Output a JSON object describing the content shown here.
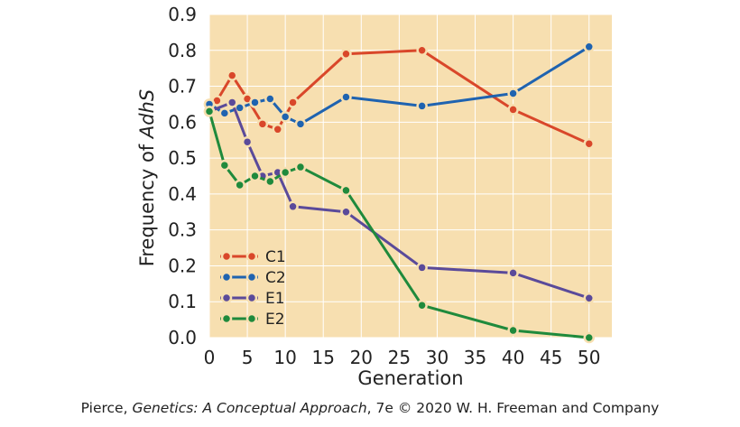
{
  "chart_data": {
    "type": "line",
    "xlabel": "Generation",
    "ylabel": {
      "prefix": "Frequency of ",
      "gene": "AdhS"
    },
    "xlim": [
      0,
      53
    ],
    "ylim": [
      0,
      0.9
    ],
    "xticks": [
      0,
      5,
      10,
      15,
      20,
      25,
      30,
      35,
      40,
      45,
      50
    ],
    "yticks": [
      0.0,
      0.1,
      0.2,
      0.3,
      0.4,
      0.5,
      0.6,
      0.7,
      0.8,
      0.9
    ],
    "ytick_labels": [
      "0.0",
      "0.1",
      "0.2",
      "0.3",
      "0.4",
      "0.5",
      "0.6",
      "0.7",
      "0.8",
      "0.9"
    ],
    "grid": true,
    "legend_position": "bottom-left",
    "series": [
      {
        "name": "C1",
        "color": "#d9472a",
        "x": [
          0,
          1,
          3,
          5,
          7,
          9,
          11,
          18,
          28,
          40,
          50
        ],
        "y": [
          0.65,
          0.66,
          0.73,
          0.665,
          0.595,
          0.58,
          0.655,
          0.79,
          0.8,
          0.635,
          0.54
        ]
      },
      {
        "name": "C2",
        "color": "#1f63b0",
        "x": [
          0,
          2,
          4,
          6,
          8,
          10,
          12,
          18,
          28,
          40,
          50
        ],
        "y": [
          0.65,
          0.625,
          0.64,
          0.655,
          0.665,
          0.615,
          0.595,
          0.67,
          0.645,
          0.68,
          0.81
        ]
      },
      {
        "name": "E1",
        "color": "#5a4a9a",
        "x": [
          0,
          3,
          5,
          7,
          9,
          11,
          18,
          28,
          40,
          50
        ],
        "y": [
          0.63,
          0.655,
          0.545,
          0.45,
          0.46,
          0.365,
          0.35,
          0.195,
          0.18,
          0.11
        ]
      },
      {
        "name": "E2",
        "color": "#1f8a3c",
        "x": [
          0,
          2,
          4,
          6,
          8,
          10,
          12,
          18,
          28,
          40,
          50
        ],
        "y": [
          0.63,
          0.48,
          0.425,
          0.45,
          0.435,
          0.46,
          0.475,
          0.41,
          0.09,
          0.02,
          0.0
        ]
      }
    ]
  },
  "credit": {
    "author": "Pierce, ",
    "book": "Genetics: A Conceptual Approach",
    "rest": ", 7e © 2020 W. H. Freeman and Company"
  }
}
